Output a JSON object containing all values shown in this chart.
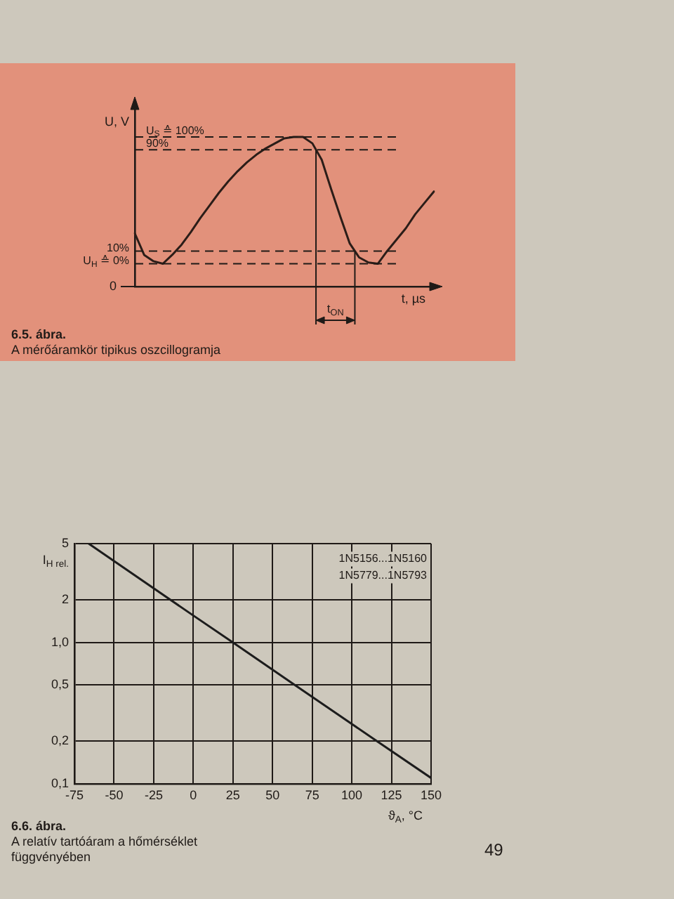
{
  "chart_data": [
    {
      "type": "line",
      "title": "6.5. ábra.",
      "subtitle": "A mérőáramkör tipikus oszcillogramja",
      "xlabel": "t, µs",
      "ylabel": "U, V",
      "categories": [
        null,
        null,
        null,
        null,
        null,
        null,
        null,
        null,
        null,
        null,
        null,
        null,
        null,
        null,
        null,
        null,
        null,
        null,
        null,
        null,
        null,
        null,
        null,
        null,
        null,
        null,
        null,
        null,
        null,
        null,
        null,
        null,
        null
      ],
      "values": [
        24,
        7,
        2,
        0,
        7,
        15,
        25,
        36,
        46,
        56,
        65,
        73,
        80,
        86,
        91,
        95,
        99,
        100,
        100,
        95,
        82,
        59,
        37,
        16,
        5,
        1,
        0,
        10,
        19,
        28,
        39,
        48,
        57
      ],
      "color": "#2b1d18",
      "ylim": [
        -18,
        125
      ],
      "ref_lines": [
        {
          "axis": "y",
          "value": 100,
          "label": "U$_{S}$ ≙ 100%",
          "line_style": "dashed"
        },
        {
          "axis": "y",
          "value": 90,
          "label": "90%",
          "line_style": "dashed"
        },
        {
          "axis": "y",
          "value": 10,
          "label": "10%",
          "line_style": "dashed"
        },
        {
          "axis": "y",
          "value": 0,
          "label": "U$_{H}$ ≙ 0%",
          "line_style": "dashed"
        }
      ],
      "annotations": [
        "t$_{ON}$",
        "0"
      ],
      "marker": "none"
    },
    {
      "type": "line",
      "title": "6.6. ábra.",
      "subtitle": "A relatív tartóáram a hőmérséklet függvényében",
      "xlabel": "ϑ$_{A}$, °C",
      "ylabel": "I$_{H rel.}$",
      "x": [
        -66,
        0,
        25,
        64,
        116,
        150
      ],
      "values": [
        5,
        1.55,
        1.0,
        0.5,
        0.2,
        0.11
      ],
      "color": "#1c1c1c",
      "xlim": [
        -75,
        150
      ],
      "xticks": [
        -75,
        -50,
        -25,
        0,
        25,
        50,
        75,
        100,
        125,
        150
      ],
      "ylim": [
        0.1,
        5
      ],
      "yticks": [
        {
          "value": 0.1,
          "label": "0,1"
        },
        {
          "value": 0.2,
          "label": "0,2"
        },
        {
          "value": 0.5,
          "label": "0,5"
        },
        {
          "value": 1,
          "label": "1,0"
        },
        2,
        5
      ],
      "log": true,
      "grid": true,
      "annotations": [
        "1N5156...1N5160",
        "1N5779...1N5793"
      ],
      "marker": "none"
    },
    {
      "type": "other",
      "annotations": [
        "49"
      ]
    }
  ]
}
